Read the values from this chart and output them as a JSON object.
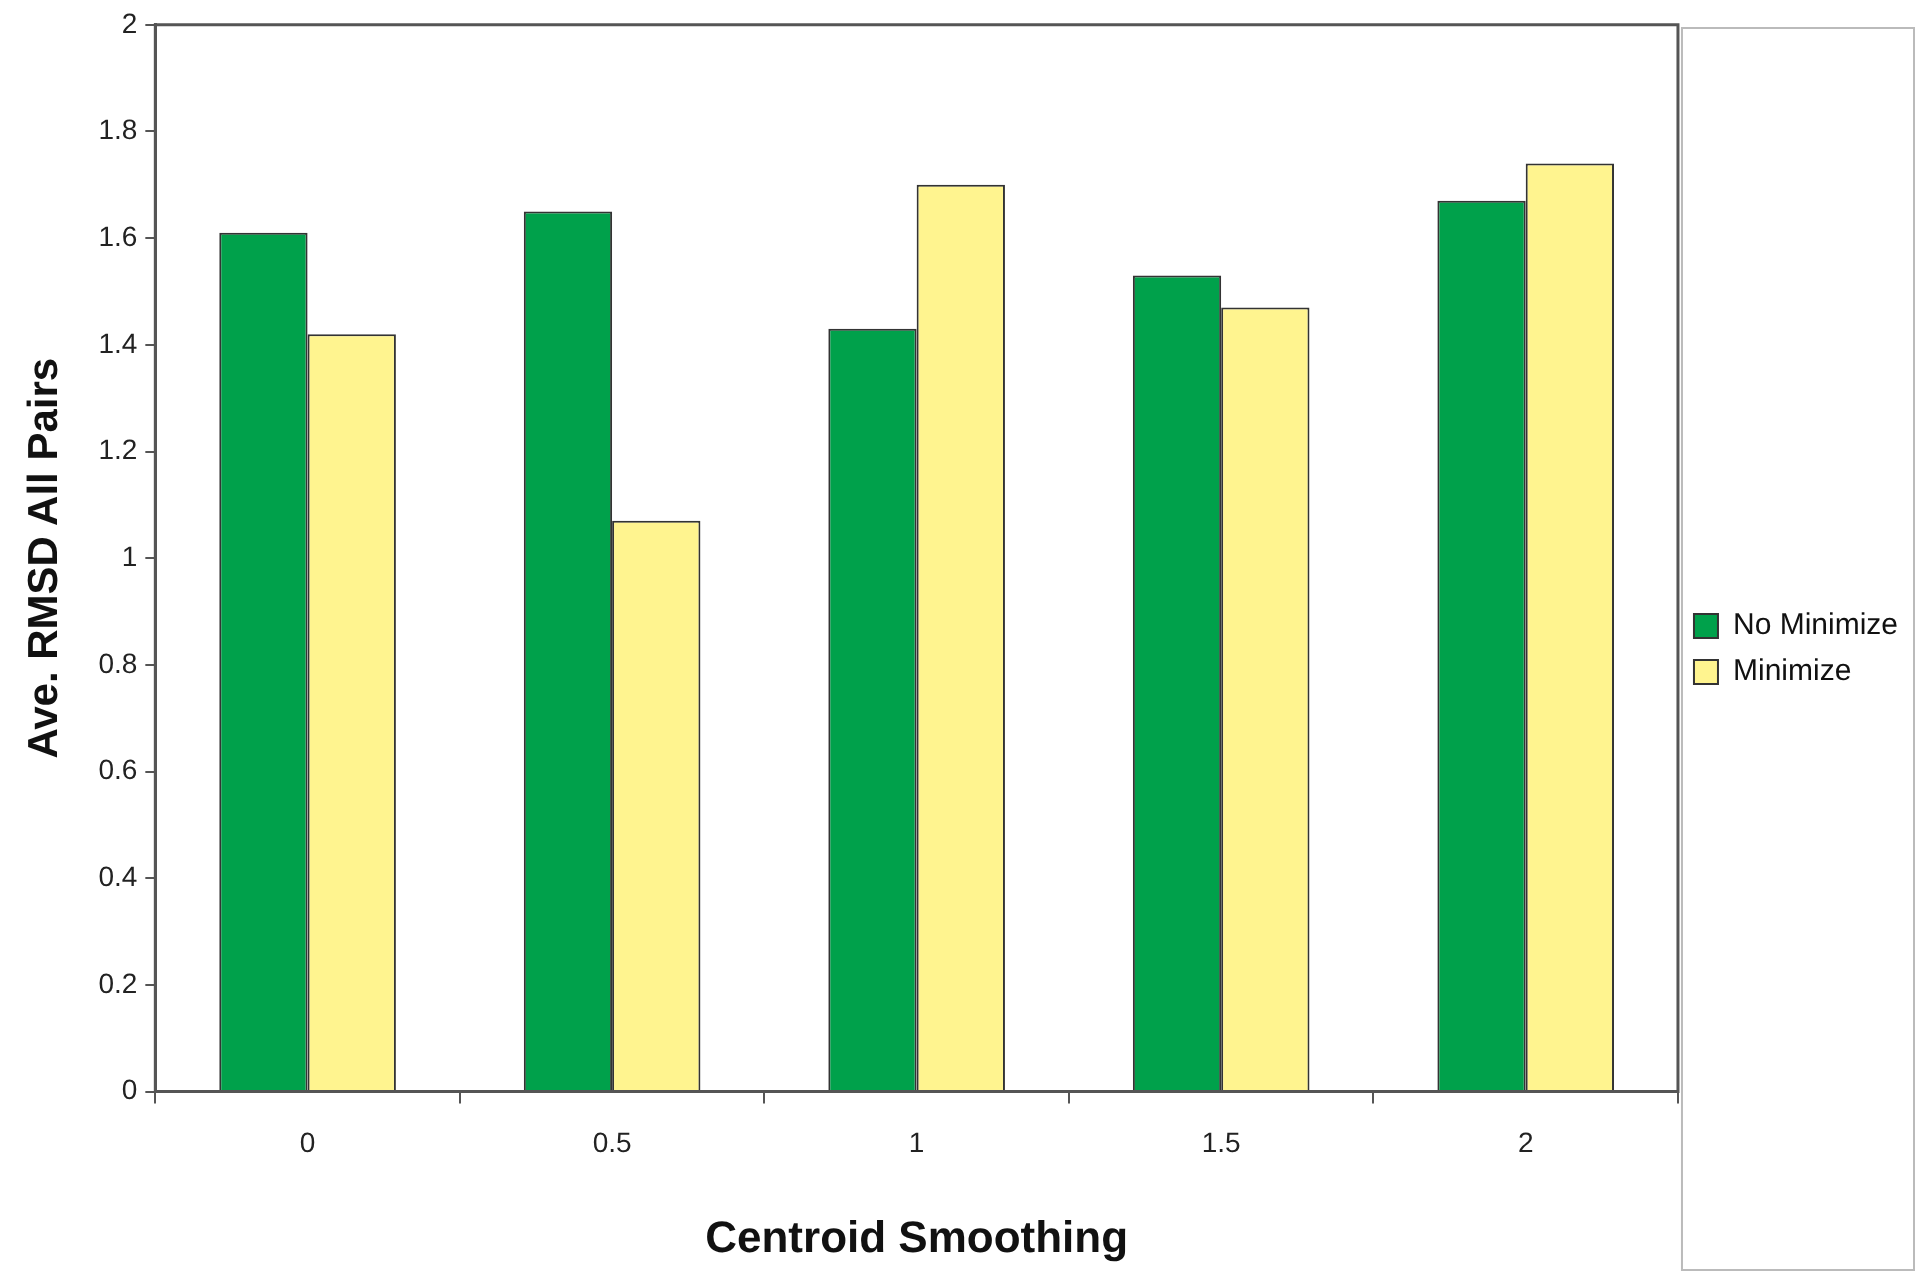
{
  "chart_data": {
    "type": "bar",
    "xlabel": "Centroid Smoothing",
    "ylabel": "Ave. RMSD All Pairs",
    "categories": [
      "0",
      "0.5",
      "1",
      "1.5",
      "2"
    ],
    "series": [
      {
        "name": "No Minimize",
        "color": "#00a14b",
        "values": [
          1.61,
          1.65,
          1.43,
          1.53,
          1.67
        ]
      },
      {
        "name": "Minimize",
        "color": "#fff48f",
        "values": [
          1.42,
          1.07,
          1.7,
          1.47,
          1.74
        ]
      }
    ],
    "ylim": [
      0,
      2
    ],
    "yticks": [
      0,
      0.2,
      0.4,
      0.6,
      0.8,
      1,
      1.2,
      1.4,
      1.6,
      1.8,
      2
    ],
    "grid": false,
    "legend": "right"
  }
}
